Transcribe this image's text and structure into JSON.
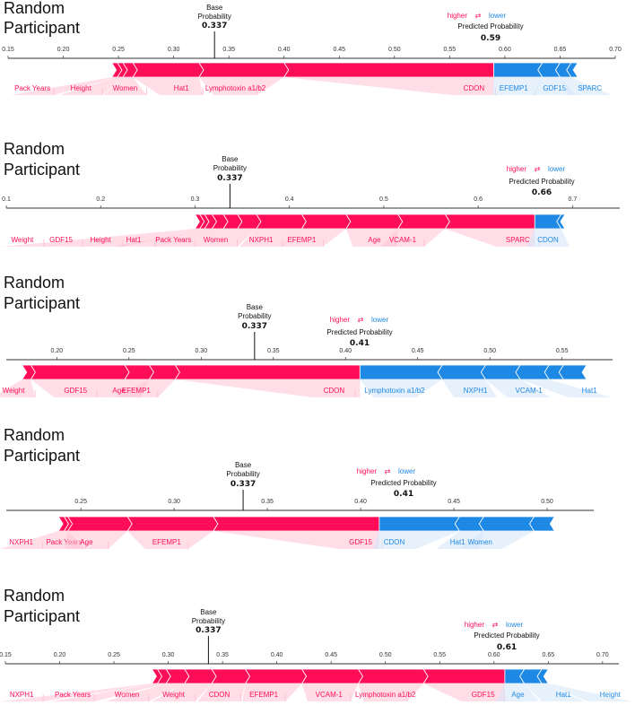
{
  "colors": {
    "pos": "#ff0d57",
    "neg": "#1e88e5",
    "pos_light": "#ffc3d5",
    "neg_light": "#d1e6fa",
    "axis": "#333333"
  },
  "legend": {
    "higher": "higher",
    "arrows": "⇄",
    "lower": "lower"
  },
  "chart_data": [
    {
      "type": "force",
      "title_line1": "Random",
      "title_line2": "Participant",
      "base_label_1": "Base",
      "base_label_2": "Probability",
      "base_value_text": "0.337",
      "base_value": 0.337,
      "pred_label": "Predicted Probability",
      "pred_value_text": "0.59",
      "pred_value": 0.59,
      "xlim": [
        0.15,
        0.7
      ],
      "ticks": [
        0.15,
        0.2,
        0.25,
        0.3,
        0.35,
        0.4,
        0.45,
        0.5,
        0.55,
        0.6,
        0.65,
        0.7
      ],
      "tick_labels": [
        "0.15",
        "0.20",
        "0.25",
        "0.30",
        "0.35",
        "0.40",
        "0.45",
        "0.50",
        "0.55",
        "0.60",
        "0.65",
        "0.70"
      ],
      "pos_min": 0.244,
      "positive": [
        {
          "feature": "CDON",
          "end": 0.59
        },
        {
          "feature": "Lymphotoxin a1/b2",
          "end": 0.4
        },
        {
          "feature": "Hat1",
          "end": 0.323
        },
        {
          "feature": "Women",
          "end": 0.263
        },
        {
          "feature": "Height",
          "end": 0.254
        },
        {
          "feature": "Pack Years",
          "end": 0.249
        }
      ],
      "negative": [
        {
          "feature": "EFEMP1",
          "end": 0.634
        },
        {
          "feature": "GDF15",
          "end": 0.65
        },
        {
          "feature": "SPARC",
          "end": 0.66
        },
        {
          "feature": "",
          "end": 0.666
        }
      ],
      "label_x": {
        "CDON": 0.572,
        "Lymphotoxin a1/b2": 0.356,
        "Hat1": 0.307,
        "Women": 0.256,
        "Height": 0.216,
        "Pack Years": 0.172,
        "EFEMP1": 0.608,
        "GDF15": 0.645,
        "SPARC": 0.677
      }
    },
    {
      "type": "force",
      "title_line1": "Random",
      "title_line2": "Participant",
      "base_label_1": "Base",
      "base_label_2": "Probability",
      "base_value_text": "0.337",
      "base_value": 0.337,
      "pred_label": "Predicted Probability",
      "pred_value_text": "0.66",
      "pred_value": 0.66,
      "xlim": [
        0.1,
        0.75
      ],
      "ticks": [
        0.1,
        0.2,
        0.3,
        0.4,
        0.5,
        0.6,
        0.7
      ],
      "tick_labels": [
        "0.1",
        "0.2",
        "0.3",
        "0.4",
        "0.5",
        "0.6",
        "0.7"
      ],
      "pos_min": 0.3,
      "positive": [
        {
          "feature": "SPARC",
          "end": 0.66
        },
        {
          "feature": "VCAM-1",
          "end": 0.565
        },
        {
          "feature": "Age",
          "end": 0.515
        },
        {
          "feature": "EFEMP1",
          "end": 0.46
        },
        {
          "feature": "NXPH1",
          "end": 0.413
        },
        {
          "feature": "Women",
          "end": 0.365
        },
        {
          "feature": "Pack Years",
          "end": 0.345
        },
        {
          "feature": "Hat1",
          "end": 0.33
        },
        {
          "feature": "Height",
          "end": 0.318
        },
        {
          "feature": "GDF15",
          "end": 0.31
        },
        {
          "feature": "Weight",
          "end": 0.305
        }
      ],
      "negative": [
        {
          "feature": "CDON",
          "end": 0.688
        },
        {
          "feature": "",
          "end": 0.692
        }
      ],
      "label_x": {
        "SPARC": 0.642,
        "VCAM-1": 0.52,
        "Age": 0.49,
        "EFEMP1": 0.413,
        "NXPH1": 0.37,
        "Women": 0.322,
        "Pack Years": 0.277,
        "Hat1": 0.235,
        "Height": 0.2,
        "GDF15": 0.158,
        "Weight": 0.117,
        "CDON": 0.674
      }
    },
    {
      "type": "force",
      "title_line1": "Random",
      "title_line2": "Participant",
      "base_label_1": "Base",
      "base_label_2": "Probability",
      "base_value_text": "0.337",
      "base_value": 0.337,
      "pred_label": "Predicted Probability",
      "pred_value_text": "0.41",
      "pred_value": 0.41,
      "xlim": [
        0.165,
        0.585
      ],
      "ticks": [
        0.2,
        0.25,
        0.3,
        0.35,
        0.4,
        0.45,
        0.5,
        0.55
      ],
      "tick_labels": [
        "0.20",
        "0.25",
        "0.30",
        "0.35",
        "0.40",
        "0.45",
        "0.50",
        "0.55"
      ],
      "pos_min": 0.176,
      "positive": [
        {
          "feature": "CDON",
          "end": 0.41
        },
        {
          "feature": "EFEMP1",
          "end": 0.282
        },
        {
          "feature": "Age",
          "end": 0.264
        },
        {
          "feature": "GDF15",
          "end": 0.247
        },
        {
          "feature": "Weight",
          "end": 0.182
        }
      ],
      "negative": [
        {
          "feature": "Lymphotoxin a1/b2",
          "end": 0.467
        },
        {
          "feature": "NXPH1",
          "end": 0.497
        },
        {
          "feature": "VCAM-1",
          "end": 0.521
        },
        {
          "feature": "Hat1",
          "end": 0.541
        },
        {
          "feature": "",
          "end": 0.551
        },
        {
          "feature": "",
          "end": 0.567
        }
      ],
      "label_x": {
        "CDON": 0.392,
        "EFEMP1": 0.255,
        "Age": 0.243,
        "GDF15": 0.213,
        "Weight": 0.17,
        "Lymphotoxin a1/b2": 0.434,
        "NXPH1": 0.49,
        "VCAM-1": 0.527,
        "Hat1": 0.569
      }
    },
    {
      "type": "force",
      "title_line1": "Random",
      "title_line2": "Participant",
      "base_label_1": "Base",
      "base_label_2": "Probability",
      "base_value_text": "0.337",
      "base_value": 0.337,
      "pred_label": "Predicted Probability",
      "pred_value_text": "0.41",
      "pred_value": 0.41,
      "xlim": [
        0.21,
        0.525
      ],
      "ticks": [
        0.25,
        0.3,
        0.35,
        0.4,
        0.45,
        0.5
      ],
      "tick_labels": [
        "0.25",
        "0.30",
        "0.35",
        "0.40",
        "0.45",
        "0.50"
      ],
      "pos_min": 0.238,
      "positive": [
        {
          "feature": "GDF15",
          "end": 0.41
        },
        {
          "feature": "EFEMP1",
          "end": 0.321
        },
        {
          "feature": "Age",
          "end": 0.275
        },
        {
          "feature": "Pack Years",
          "end": 0.243
        },
        {
          "feature": "NXPH1",
          "end": 0.241
        }
      ],
      "negative": [
        {
          "feature": "CDON",
          "end": 0.453
        },
        {
          "feature": "Hat1",
          "end": 0.466
        },
        {
          "feature": "Women",
          "end": 0.493
        },
        {
          "feature": "",
          "end": 0.504
        }
      ],
      "label_x": {
        "GDF15": 0.4,
        "EFEMP1": 0.296,
        "Age": 0.253,
        "Pack Years": 0.241,
        "NXPH1": 0.218,
        "CDON": 0.418,
        "Hat1": 0.452,
        "Women": 0.464
      }
    },
    {
      "type": "force",
      "title_line1": "Random",
      "title_line2": "Participant",
      "base_label_1": "Base",
      "base_label_2": "Probability",
      "base_value_text": "0.337",
      "base_value": 0.337,
      "pred_label": "Predicted Probability",
      "pred_value_text": "0.61",
      "pred_value": 0.61,
      "xlim": [
        0.15,
        0.715
      ],
      "ticks": [
        0.15,
        0.2,
        0.25,
        0.3,
        0.35,
        0.4,
        0.45,
        0.5,
        0.55,
        0.6,
        0.65,
        0.7
      ],
      "tick_labels": [
        "0.15",
        "0.20",
        "0.25",
        "0.30",
        "0.35",
        "0.40",
        "0.45",
        "0.50",
        "0.55",
        "0.60",
        "0.65",
        "0.70"
      ],
      "pos_min": 0.285,
      "positive": [
        {
          "feature": "GDF15",
          "end": 0.61
        },
        {
          "feature": "Lymphotoxin a1/b2",
          "end": 0.535
        },
        {
          "feature": "VCAM-1",
          "end": 0.475
        },
        {
          "feature": "EFEMP1",
          "end": 0.423
        },
        {
          "feature": "CDON",
          "end": 0.371
        },
        {
          "feature": "Weight",
          "end": 0.34
        },
        {
          "feature": "Women",
          "end": 0.315
        },
        {
          "feature": "Pack Years",
          "end": 0.298
        },
        {
          "feature": "NXPH1",
          "end": 0.29
        }
      ],
      "negative": [
        {
          "feature": "Age",
          "end": 0.628
        },
        {
          "feature": "Hat1",
          "end": 0.644
        },
        {
          "feature": "Height",
          "end": 0.65
        }
      ],
      "label_x": {
        "GDF15": 0.59,
        "Lymphotoxin a1/b2": 0.5,
        "VCAM-1": 0.448,
        "EFEMP1": 0.388,
        "CDON": 0.347,
        "Weight": 0.305,
        "Women": 0.262,
        "Pack Years": 0.212,
        "NXPH1": 0.165,
        "Age": 0.622,
        "Hat1": 0.664,
        "Height": 0.707
      }
    }
  ]
}
